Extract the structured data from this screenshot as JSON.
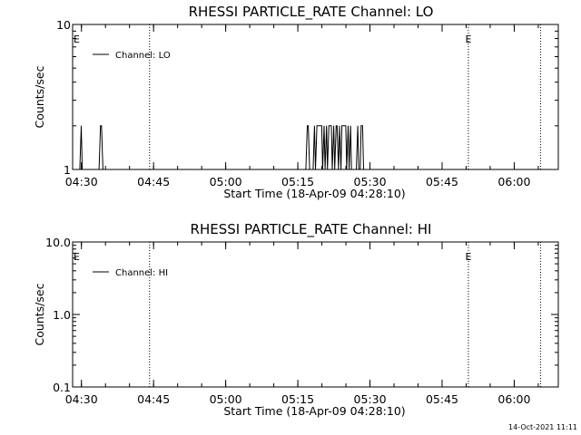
{
  "chart_data": [
    {
      "type": "line",
      "title": "RHESSI PARTICLE_RATE Channel: LO",
      "xlabel": "Start Time (18-Apr-09 04:28:10)",
      "ylabel": "Counts/sec",
      "yscale": "log",
      "ylim": [
        1,
        10
      ],
      "y_tick_labels": [
        "1",
        "10"
      ],
      "x_tick_labels": [
        "04:30",
        "04:45",
        "05:00",
        "05:15",
        "05:30",
        "05:45",
        "06:00"
      ],
      "x_unit": "minutes after 04:28:10",
      "xlim": [
        0,
        101
      ],
      "vertical_markers": [
        {
          "x": 16.0
        },
        {
          "x": 82.3,
          "label": "E"
        },
        {
          "x": 97.3
        }
      ],
      "left_marker_label": "E",
      "legend": {
        "entry": "Channel: LO",
        "position": "top-left"
      },
      "series": [
        {
          "name": "Channel: LO",
          "x": [
            0.0,
            1.5,
            1.8,
            2.0,
            2.3,
            5.5,
            5.8,
            6.0,
            6.3,
            6.5,
            48.5,
            48.8,
            49.0,
            49.3,
            50.0,
            50.3,
            50.5,
            50.8,
            51.0,
            51.3,
            51.5,
            51.8,
            52.0,
            52.3,
            52.5,
            52.8,
            53.0,
            53.3,
            53.5,
            53.8,
            54.0,
            54.3,
            54.5,
            54.8,
            55.0,
            55.3,
            55.5,
            55.8,
            56.0,
            56.3,
            56.5,
            56.8,
            57.0,
            57.3,
            57.5,
            57.8,
            58.0,
            58.3,
            59.0,
            59.3,
            59.5,
            59.8,
            60.0,
            60.3,
            60.5,
            60.8,
            101
          ],
          "y": [
            1,
            1,
            2,
            1,
            1,
            1,
            2,
            2,
            1,
            1,
            1,
            2,
            2,
            1,
            1,
            2,
            1,
            2,
            2,
            2,
            2,
            2,
            1,
            2,
            1,
            2,
            1,
            2,
            2,
            2,
            1,
            2,
            1,
            2,
            2,
            1,
            2,
            1,
            2,
            2,
            2,
            2,
            1,
            2,
            1,
            2,
            1,
            1,
            1,
            2,
            1,
            1,
            2,
            2,
            1,
            1,
            1
          ]
        }
      ]
    },
    {
      "type": "line",
      "title": "RHESSI PARTICLE_RATE Channel: HI",
      "xlabel": "Start Time (18-Apr-09 04:28:10)",
      "ylabel": "Counts/sec",
      "yscale": "log",
      "ylim": [
        0.1,
        10
      ],
      "y_tick_labels": [
        "0.1",
        "1.0",
        "10.0"
      ],
      "x_tick_labels": [
        "04:30",
        "04:45",
        "05:00",
        "05:15",
        "05:30",
        "05:45",
        "06:00"
      ],
      "x_unit": "minutes after 04:28:10",
      "xlim": [
        0,
        101
      ],
      "vertical_markers": [
        {
          "x": 16.0
        },
        {
          "x": 82.3,
          "label": "E"
        },
        {
          "x": 97.3
        }
      ],
      "left_marker_label": "E",
      "legend": {
        "entry": "Channel: HI",
        "position": "top-left"
      },
      "series": [
        {
          "name": "Channel: HI",
          "x": [],
          "y": []
        }
      ]
    }
  ],
  "footer": {
    "timestamp": "14-Oct-2021 11:11"
  }
}
